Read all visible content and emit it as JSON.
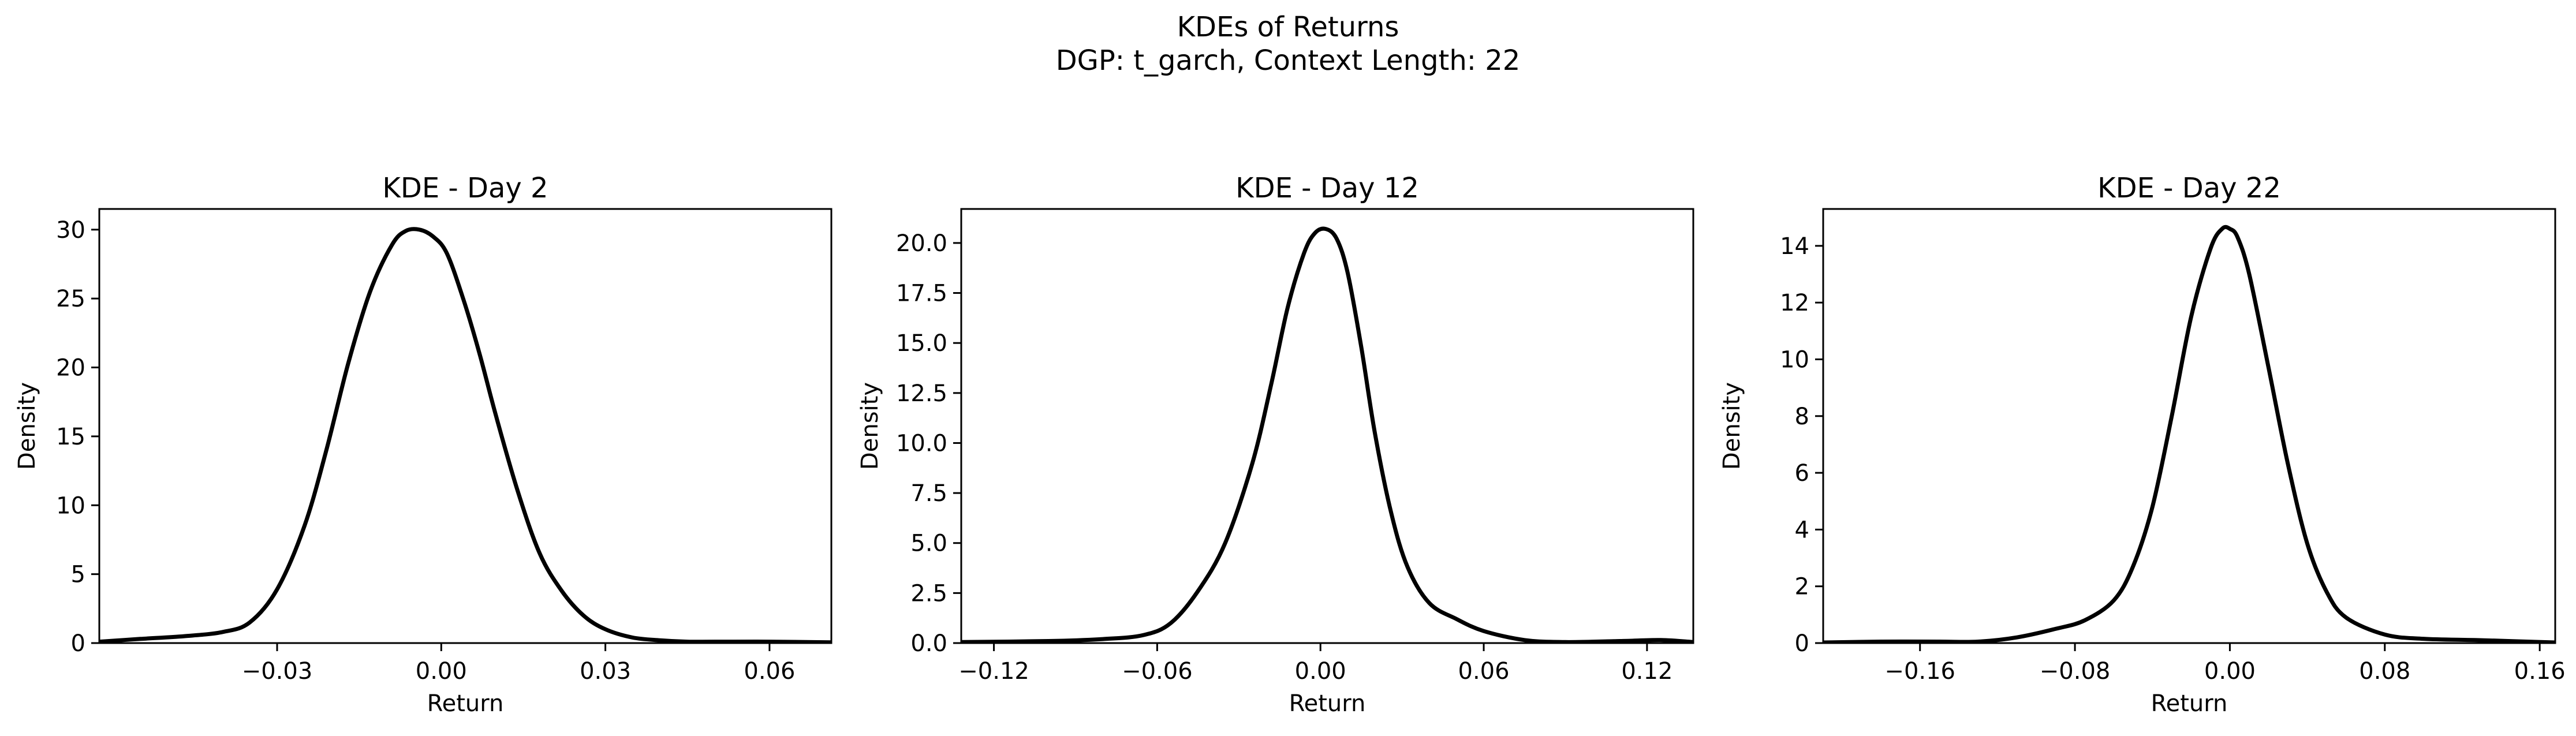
{
  "figure": {
    "title_line1": "KDEs of Returns",
    "title_line2": "DGP: t_garch, Context Length: 22"
  },
  "chart_data": [
    {
      "type": "line",
      "title": "KDE - Day 2",
      "xlabel": "Return",
      "ylabel": "Density",
      "xlim": [
        -0.0625,
        0.0713
      ],
      "ylim": [
        0,
        31.5
      ],
      "xticks": [
        -0.03,
        0.0,
        0.03,
        0.06
      ],
      "xtick_labels": [
        "−0.03",
        "0.00",
        "0.03",
        "0.06"
      ],
      "yticks": [
        0,
        5,
        10,
        15,
        20,
        25,
        30
      ],
      "ytick_labels": [
        "0",
        "5",
        "10",
        "15",
        "20",
        "25",
        "30"
      ],
      "line_color": "#000000",
      "grid": false,
      "x": [
        -0.0625,
        -0.055,
        -0.047,
        -0.04,
        -0.035,
        -0.03,
        -0.025,
        -0.021,
        -0.017,
        -0.013,
        -0.009,
        -0.0065,
        -0.004,
        -0.0015,
        0.001,
        0.004,
        0.007,
        0.01,
        0.014,
        0.018,
        0.022,
        0.026,
        0.03,
        0.035,
        0.04,
        0.045,
        0.05,
        0.06,
        0.0713
      ],
      "y": [
        0.1,
        0.3,
        0.5,
        0.8,
        1.5,
        3.9,
        8.5,
        14.0,
        20.3,
        25.5,
        28.9,
        29.9,
        30.0,
        29.5,
        28.3,
        25.0,
        21.0,
        16.5,
        11.0,
        6.5,
        3.8,
        2.0,
        1.0,
        0.4,
        0.2,
        0.1,
        0.1,
        0.1,
        0.05
      ]
    },
    {
      "type": "line",
      "title": "KDE - Day 12",
      "xlabel": "Return",
      "ylabel": "Density",
      "xlim": [
        -0.132,
        0.137
      ],
      "ylim": [
        0,
        21.7
      ],
      "xticks": [
        -0.12,
        -0.06,
        0.0,
        0.06,
        0.12
      ],
      "xtick_labels": [
        "−0.12",
        "−0.06",
        "0.00",
        "0.06",
        "0.12"
      ],
      "yticks": [
        0,
        2.5,
        5.0,
        7.5,
        10.0,
        12.5,
        15.0,
        17.5,
        20.0
      ],
      "ytick_labels": [
        "0.0",
        "2.5",
        "5.0",
        "7.5",
        "10.0",
        "12.5",
        "15.0",
        "17.5",
        "20.0"
      ],
      "line_color": "#000000",
      "grid": false,
      "x": [
        -0.132,
        -0.1,
        -0.08,
        -0.065,
        -0.055,
        -0.045,
        -0.035,
        -0.025,
        -0.018,
        -0.012,
        -0.006,
        -0.002,
        0.002,
        0.006,
        0.01,
        0.015,
        0.02,
        0.026,
        0.032,
        0.04,
        0.05,
        0.06,
        0.075,
        0.09,
        0.11,
        0.125,
        0.137
      ],
      "y": [
        0.05,
        0.1,
        0.2,
        0.4,
        1.0,
        2.6,
        5.0,
        9.0,
        13.0,
        16.8,
        19.5,
        20.5,
        20.7,
        20.2,
        18.5,
        14.8,
        10.5,
        6.5,
        3.8,
        2.0,
        1.2,
        0.6,
        0.15,
        0.05,
        0.1,
        0.15,
        0.05
      ]
    },
    {
      "type": "line",
      "title": "KDE - Day 22",
      "xlabel": "Return",
      "ylabel": "Density",
      "xlim": [
        -0.21,
        0.168
      ],
      "ylim": [
        0,
        15.3
      ],
      "xticks": [
        -0.16,
        -0.08,
        0.0,
        0.08,
        0.16
      ],
      "xtick_labels": [
        "−0.16",
        "−0.08",
        "0.00",
        "0.08",
        "0.16"
      ],
      "yticks": [
        0,
        2,
        4,
        6,
        8,
        10,
        12,
        14
      ],
      "ytick_labels": [
        "0",
        "2",
        "4",
        "6",
        "8",
        "10",
        "12",
        "14"
      ],
      "line_color": "#000000",
      "grid": false,
      "x": [
        -0.21,
        -0.18,
        -0.15,
        -0.13,
        -0.11,
        -0.09,
        -0.075,
        -0.06,
        -0.05,
        -0.04,
        -0.03,
        -0.02,
        -0.01,
        -0.004,
        0.0,
        0.004,
        0.01,
        0.02,
        0.03,
        0.04,
        0.05,
        0.06,
        0.08,
        0.1,
        0.13,
        0.168
      ],
      "y": [
        0.02,
        0.05,
        0.05,
        0.05,
        0.2,
        0.5,
        0.8,
        1.5,
        2.7,
        4.8,
        8.0,
        11.5,
        13.9,
        14.6,
        14.6,
        14.3,
        13.0,
        9.7,
        6.3,
        3.5,
        1.8,
        0.9,
        0.3,
        0.15,
        0.1,
        0.02
      ]
    }
  ]
}
